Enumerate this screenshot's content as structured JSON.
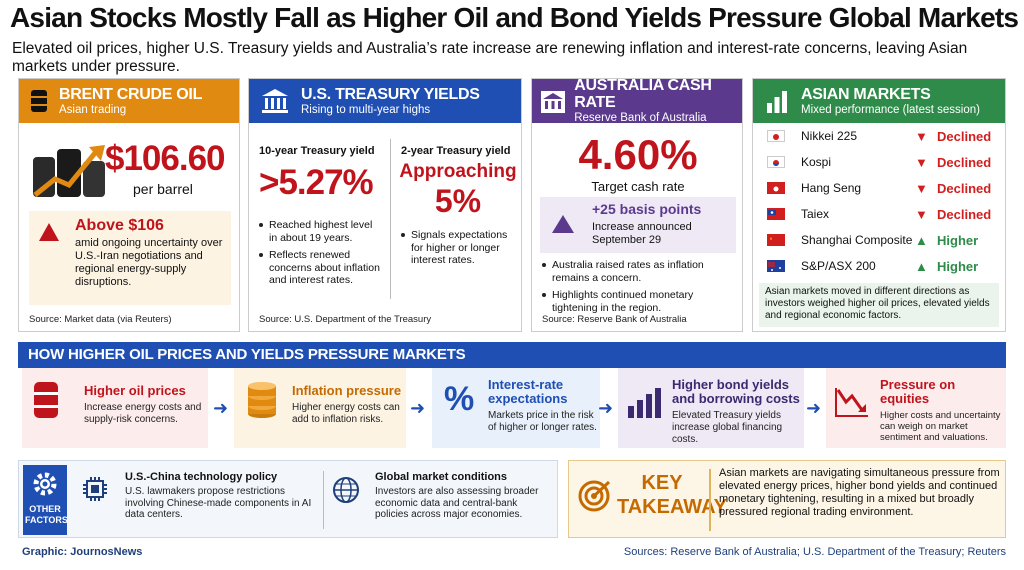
{
  "headline": "Asian Stocks Mostly Fall as Higher Oil and Bond Yields Pressure Global Markets",
  "subheadline": "Elevated oil prices, higher U.S. Treasury yields and Australia’s rate increase are renewing inflation and interest-rate concerns, leaving Asian markets under pressure.",
  "brent": {
    "title": "BRENT CRUDE OIL",
    "subtitle": "Asian trading",
    "price": "$106.60",
    "unit": "per barrel",
    "alert_title": "Above $106",
    "alert_text": "amid ongoing uncertainty over U.S.-Iran negotiations and regional energy-supply disruptions.",
    "source": "Source: Market data (via Reuters)",
    "color": "#e08a12"
  },
  "treasury": {
    "title": "U.S. TREASURY YIELDS",
    "subtitle": "Rising to multi-year highs",
    "ten_label": "10-year Treasury yield",
    "ten_value": ">5.27%",
    "ten_b1": "Reached highest level in about 19 years.",
    "ten_b2": "Reflects renewed concerns about inflation and interest rates.",
    "two_label": "2-year Treasury yield",
    "two_value1": "Approaching",
    "two_value2": "5%",
    "two_b1": "Signals expectations for higher or longer interest rates.",
    "source": "Source: U.S. Department of the Treasury",
    "color": "#1f4fb3"
  },
  "australia": {
    "title": "AUSTRALIA CASH RATE",
    "subtitle": "Reserve Bank of Australia",
    "rate": "4.60%",
    "rate_label": "Target cash rate",
    "bp": "+25 basis points",
    "bp_sub": "Increase announced September 29",
    "b1": "Australia raised rates as inflation remains a concern.",
    "b2": "Highlights continued monetary tightening in the region.",
    "source": "Source: Reserve Bank of Australia",
    "color": "#5b3a8e"
  },
  "asian_markets": {
    "title": "ASIAN MARKETS",
    "subtitle": "Mixed performance (latest session)",
    "rows": [
      {
        "name": "Nikkei 225",
        "status": "Declined"
      },
      {
        "name": "Kospi",
        "status": "Declined"
      },
      {
        "name": "Hang Seng",
        "status": "Declined"
      },
      {
        "name": "Taiex",
        "status": "Declined"
      },
      {
        "name": "Shanghai Composite",
        "status": "Higher"
      },
      {
        "name": "S&P/ASX 200",
        "status": "Higher"
      }
    ],
    "note": "Asian markets moved in different directions as investors weighed higher oil prices, elevated yields and regional economic factors.",
    "color": "#2e8b4a",
    "down_color": "#d11f1f",
    "up_color": "#2e8b4a"
  },
  "flow": {
    "heading": "HOW HIGHER OIL PRICES AND YIELDS PRESSURE MARKETS",
    "steps": [
      {
        "label": "Higher oil prices",
        "text": "Increase energy costs and supply-risk concerns."
      },
      {
        "label": "Inflation pressure",
        "text": "Higher energy costs can add to inflation risks."
      },
      {
        "label": "Interest-rate expectations",
        "text": "Markets price in the risk of higher or longer rates."
      },
      {
        "label": "Higher bond yields and borrowing costs",
        "text": "Elevated Treasury yields increase global financing costs."
      },
      {
        "label": "Pressure on equities",
        "text": "Higher costs and uncertainty can weigh on market sentiment and valuations."
      }
    ]
  },
  "other": {
    "label": "OTHER FACTORS",
    "f1_title": "U.S.-China technology policy",
    "f1_text": "U.S. lawmakers propose restrictions involving Chinese-made components in AI data centers.",
    "f2_title": "Global market conditions",
    "f2_text": "Investors are also assessing broader economic data and central-bank policies across major economies."
  },
  "takeaway": {
    "label1": "KEY",
    "label2": "TAKEAWAY",
    "text": "Asian markets are navigating simultaneous pressure from elevated energy prices, higher bond yields and continued monetary tightening, resulting in a mixed but broadly pressured regional trading environment."
  },
  "footer": {
    "graphic": "Graphic: JournosNews",
    "sources": "Sources: Reserve Bank of Australia; U.S. Department of the Treasury; Reuters"
  }
}
